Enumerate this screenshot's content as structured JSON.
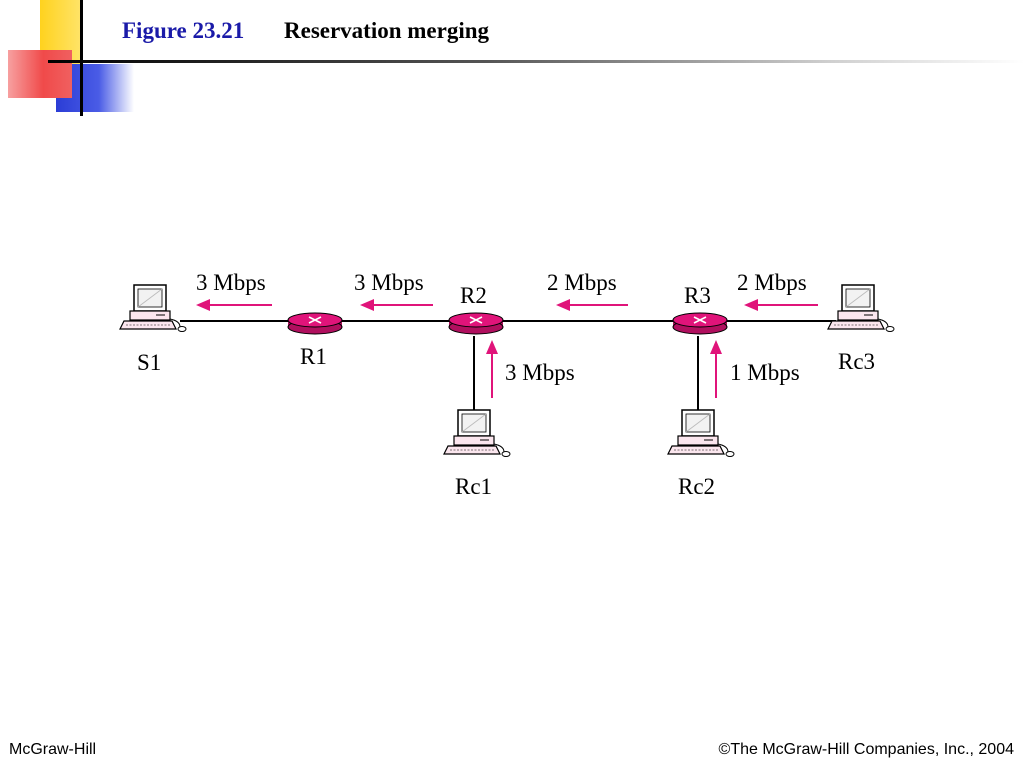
{
  "slide": {
    "figure_number": "Figure 23.21",
    "title": "Reservation merging",
    "footer_left": "McGraw-Hill",
    "footer_right": "©The McGraw-Hill Companies, Inc., 2004"
  },
  "colors": {
    "accent_title": "#1a1aa8",
    "router": "#e0147a",
    "arrow": "#e0147a",
    "deco_yellow": "#ffd21e",
    "deco_red": "#f04a4a",
    "deco_blue": "#2b3dd6"
  },
  "diagram": {
    "nodes": {
      "s1": "S1",
      "r1": "R1",
      "r2": "R2",
      "r3": "R3",
      "rc1": "Rc1",
      "rc2": "Rc2",
      "rc3": "Rc3"
    },
    "rates": {
      "r1_to_s1": "3 Mbps",
      "r2_to_r1": "3 Mbps",
      "r3_to_r2": "2 Mbps",
      "rc3_to_r3": "2 Mbps",
      "rc1_to_r2": "3 Mbps",
      "rc2_to_r3": "1 Mbps"
    }
  }
}
